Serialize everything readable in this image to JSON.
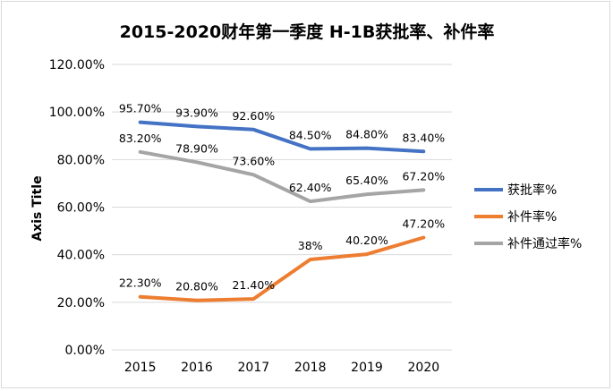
{
  "chart_data": {
    "type": "line",
    "title": "2015-2020财年第一季度 H-1B获批率、补件率",
    "xlabel": "",
    "ylabel": "Axis Title",
    "categories": [
      "2015",
      "2016",
      "2017",
      "2018",
      "2019",
      "2020"
    ],
    "ylim": [
      0,
      120
    ],
    "yticks": [
      "0.00%",
      "20.00%",
      "40.00%",
      "60.00%",
      "80.00%",
      "100.00%",
      "120.00%"
    ],
    "grid": true,
    "legend_position": "right",
    "series": [
      {
        "name": "获批率%",
        "color": "#4472c4",
        "values": [
          95.7,
          93.9,
          92.6,
          84.5,
          84.8,
          83.4
        ],
        "labels": [
          "95.70%",
          "93.90%",
          "92.60%",
          "84.50%",
          "84.80%",
          "83.40%"
        ]
      },
      {
        "name": "补件率%",
        "color": "#ed7d31",
        "values": [
          22.3,
          20.8,
          21.4,
          38,
          40.2,
          47.2
        ],
        "labels": [
          "22.30%",
          "20.80%",
          "21.40%",
          "38%",
          "40.20%",
          "47.20%"
        ]
      },
      {
        "name": "补件通过率%",
        "color": "#a5a5a5",
        "values": [
          83.2,
          78.9,
          73.6,
          62.4,
          65.4,
          67.2
        ],
        "labels": [
          "83.20%",
          "78.90%",
          "73.60%",
          "62.40%",
          "65.40%",
          "67.20%"
        ]
      }
    ]
  }
}
